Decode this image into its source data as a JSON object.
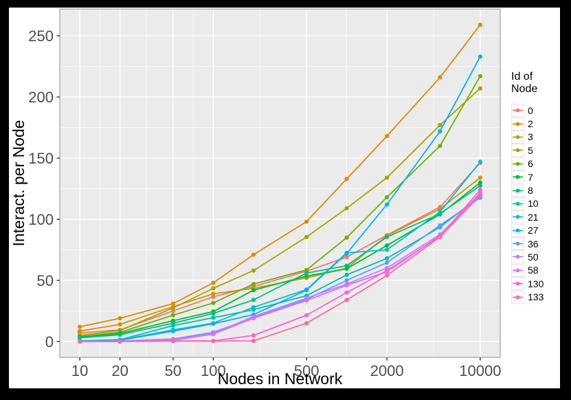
{
  "frame": {
    "border_color": "#000000",
    "content_background": "#ffffff"
  },
  "chart_data": {
    "type": "line",
    "title": "",
    "xlabel": "Nodes in Network",
    "ylabel": "Interact. per Node",
    "x_scale": "log10",
    "grid": "on",
    "legend_position": "right",
    "legend_title": "Id of Node",
    "panel_bg": "#EBEBEB",
    "panel_border": "#8c8c8c",
    "grid_color": "#FFFFFF",
    "tick_color": "#333333",
    "tick_label_color": "#4d4d4d",
    "axis_title_color": "#000000",
    "x": [
      10,
      20,
      50,
      100,
      200,
      500,
      1000,
      2000,
      5000,
      10000
    ],
    "x_tick_breaks": [
      10,
      20,
      50,
      100,
      500,
      2000,
      10000
    ],
    "x_tick_labels": [
      "10",
      "20",
      "50",
      "100",
      "500",
      "2000",
      "10000"
    ],
    "y_tick_breaks": [
      0,
      50,
      100,
      150,
      200,
      250
    ],
    "y_tick_labels": [
      "0",
      "50",
      "100",
      "150",
      "200",
      "250"
    ],
    "y_minor_breaks": [
      25,
      75,
      125,
      175,
      225
    ],
    "x_range_log10": [
      0.85,
      4.15
    ],
    "y_range": [
      -13,
      272
    ],
    "series": [
      {
        "name": "0",
        "color": "#F8766D",
        "values": [
          7,
          9.5,
          25,
          36.5,
          45,
          57.5,
          69,
          87,
          110,
          146
        ]
      },
      {
        "name": "2",
        "color": "#E58700",
        "values": [
          12,
          19,
          31,
          48,
          71,
          98,
          133,
          168,
          216,
          259
        ]
      },
      {
        "name": "3",
        "color": "#C99800",
        "values": [
          8.5,
          14,
          28.5,
          39,
          43.5,
          52,
          60,
          86.5,
          108.5,
          134
        ]
      },
      {
        "name": "5",
        "color": "#A3A500",
        "values": [
          5,
          9,
          27.5,
          43.5,
          58,
          85.5,
          109,
          134,
          177,
          207
        ]
      },
      {
        "name": "6",
        "color": "#6BB100",
        "values": [
          4,
          7.5,
          21.5,
          31.5,
          47,
          58.5,
          85,
          118,
          160,
          217
        ]
      },
      {
        "name": "7",
        "color": "#00BA38",
        "values": [
          3.5,
          6.5,
          17,
          24.5,
          42,
          53.5,
          59.5,
          78.5,
          104,
          130
        ]
      },
      {
        "name": "8",
        "color": "#00BF7D",
        "values": [
          3,
          5.5,
          15,
          23,
          34,
          56,
          62,
          85.5,
          104.5,
          127.5
        ]
      },
      {
        "name": "10",
        "color": "#00C0AF",
        "values": [
          0.5,
          1.5,
          13,
          19.5,
          26,
          37.5,
          54.5,
          68,
          93.5,
          119
        ]
      },
      {
        "name": "21",
        "color": "#00BCD8",
        "values": [
          0.5,
          1.2,
          9.5,
          15,
          28,
          42.5,
          72.5,
          75,
          106,
          147
        ]
      },
      {
        "name": "27",
        "color": "#00B0F6",
        "values": [
          0.3,
          1,
          8.5,
          14.5,
          22,
          42,
          72,
          112,
          172,
          233
        ]
      },
      {
        "name": "36",
        "color": "#619CFF",
        "values": [
          0,
          0.3,
          2,
          7.5,
          19.5,
          34.5,
          50,
          64.5,
          95,
          117.5
        ]
      },
      {
        "name": "50",
        "color": "#B983FF",
        "values": [
          0,
          0.2,
          1.3,
          6.5,
          20.5,
          35.5,
          47,
          60,
          87.5,
          120.5
        ]
      },
      {
        "name": "58",
        "color": "#E76BF3",
        "values": [
          0,
          0.2,
          1,
          6,
          19,
          33.5,
          46,
          57,
          86.5,
          121.5
        ]
      },
      {
        "name": "130",
        "color": "#FD61D1",
        "values": [
          0,
          0,
          0.5,
          0.5,
          5,
          21.5,
          40,
          58,
          86,
          124
        ]
      },
      {
        "name": "133",
        "color": "#FF67A4",
        "values": [
          0,
          0,
          0.3,
          0.3,
          0.5,
          15,
          34,
          54,
          85.5,
          119.5
        ]
      }
    ]
  }
}
